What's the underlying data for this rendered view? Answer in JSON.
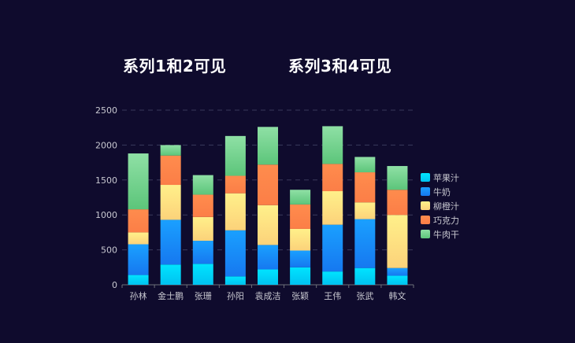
{
  "chart_data": {
    "type": "bar",
    "stacked": true,
    "headings": [
      "系列1和2可见",
      "系列3和4可见"
    ],
    "categories": [
      "孙林",
      "金士鹏",
      "张珊",
      "孙阳",
      "袁成洁",
      "张颖",
      "王伟",
      "张武",
      "韩文"
    ],
    "ylim": [
      0,
      2500
    ],
    "yticks": [
      0,
      500,
      1000,
      1500,
      2000,
      2500
    ],
    "grid": true,
    "legend_position": "right",
    "series": [
      {
        "name": "苹果汁",
        "color_top": "#00e4ff",
        "color_bottom": "#00c2f0",
        "values": [
          140,
          290,
          300,
          120,
          220,
          250,
          190,
          240,
          130
        ]
      },
      {
        "name": "牛奶",
        "color_top": "#1aa0ff",
        "color_bottom": "#1678f0",
        "values": [
          440,
          640,
          330,
          660,
          350,
          240,
          670,
          700,
          110
        ]
      },
      {
        "name": "柳橙汁",
        "color_top": "#fff08a",
        "color_bottom": "#fcd27a",
        "values": [
          170,
          500,
          340,
          530,
          570,
          310,
          480,
          240,
          760
        ]
      },
      {
        "name": "巧克力",
        "color_top": "#ff8c4d",
        "color_bottom": "#fb7e47",
        "values": [
          330,
          420,
          320,
          250,
          580,
          350,
          390,
          430,
          360
        ]
      },
      {
        "name": "牛肉干",
        "color_top": "#8fe0a5",
        "color_bottom": "#5cc57a",
        "values": [
          800,
          150,
          280,
          570,
          540,
          210,
          540,
          220,
          340
        ]
      }
    ]
  }
}
